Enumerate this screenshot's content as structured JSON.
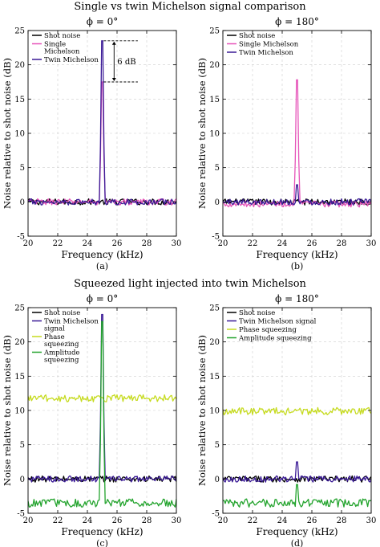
{
  "titles": {
    "top": "Single vs twin Michelson signal comparison",
    "bottom": "Squeezed light injected into twin Michelson"
  },
  "colors": {
    "shot": "#000000",
    "single": "#e653b9",
    "twin": "#3a1a96",
    "phase": "#c6db1f",
    "amplitude": "#22a32c"
  },
  "chart_data": [
    {
      "type": "line",
      "panel": "a",
      "title": "ϕ = 0°",
      "caption": "(a)",
      "xlabel": "Frequency (kHz)",
      "ylabel": "Noise relative to shot noise (dB)",
      "xlim": [
        20,
        30
      ],
      "ylim": [
        -5,
        25
      ],
      "xticks": [
        20,
        22,
        24,
        26,
        28,
        30
      ],
      "yticks": [
        -5,
        0,
        5,
        10,
        15,
        20,
        25
      ],
      "grid": true,
      "legend": "top-left",
      "annotation": {
        "text": "6 dB",
        "from": 23.5,
        "to": 17.5,
        "x": 25.8
      },
      "series": [
        {
          "name": "Shot noise",
          "color_key": "shot",
          "baseline": 0.0,
          "peak": 0.0
        },
        {
          "name": "Single Michelson",
          "legend_lines": [
            "Single",
            "Michelson"
          ],
          "color_key": "single",
          "baseline": 0.0,
          "peak": 17.5
        },
        {
          "name": "Twin Michelson",
          "color_key": "twin",
          "baseline": 0.0,
          "peak": 23.5
        }
      ]
    },
    {
      "type": "line",
      "panel": "b",
      "title": "ϕ = 180°",
      "caption": "(b)",
      "xlabel": "Frequency (kHz)",
      "ylabel": "Noise relative to shot noise (dB)",
      "xlim": [
        20,
        30
      ],
      "ylim": [
        -5,
        25
      ],
      "xticks": [
        20,
        22,
        24,
        26,
        28,
        30
      ],
      "yticks": [
        -5,
        0,
        5,
        10,
        15,
        20,
        25
      ],
      "grid": true,
      "legend": "top-left",
      "series": [
        {
          "name": "Shot noise",
          "color_key": "shot",
          "baseline": 0.0,
          "peak": 0.0
        },
        {
          "name": "Single Michelson",
          "color_key": "single",
          "baseline": -0.3,
          "peak": 17.8
        },
        {
          "name": "Twin Michelson",
          "color_key": "twin",
          "baseline": 0.0,
          "peak": 2.5
        }
      ]
    },
    {
      "type": "line",
      "panel": "c",
      "title": "ϕ = 0°",
      "caption": "(c)",
      "xlabel": "Frequency (kHz)",
      "ylabel": "Noise relative to shot noise (dB)",
      "xlim": [
        20,
        30
      ],
      "ylim": [
        -5,
        25
      ],
      "xticks": [
        20,
        22,
        24,
        26,
        28,
        30
      ],
      "yticks": [
        -5,
        0,
        5,
        10,
        15,
        20,
        25
      ],
      "grid": true,
      "legend": "top-left",
      "series": [
        {
          "name": "Shot noise",
          "color_key": "shot",
          "baseline": 0.0,
          "peak": 0.0
        },
        {
          "name": "Twin Michelson signal",
          "legend_lines": [
            "Twin Michelson",
            "signal"
          ],
          "color_key": "twin",
          "baseline": 0.0,
          "peak": 24.0
        },
        {
          "name": "Phase squeezing",
          "legend_lines": [
            "Phase",
            "squeezing"
          ],
          "color_key": "phase",
          "baseline": 11.8,
          "peak": 11.8
        },
        {
          "name": "Amplitude squeezing",
          "legend_lines": [
            "Amplitude",
            "squeezing"
          ],
          "color_key": "amplitude",
          "baseline": -3.5,
          "peak": 23.0
        }
      ]
    },
    {
      "type": "line",
      "panel": "d",
      "title": "ϕ = 180°",
      "caption": "(d)",
      "xlabel": "Frequency (kHz)",
      "ylabel": "Noise relative to shot noise (dB)",
      "xlim": [
        20,
        30
      ],
      "ylim": [
        -5,
        25
      ],
      "xticks": [
        20,
        22,
        24,
        26,
        28,
        30
      ],
      "yticks": [
        -5,
        0,
        5,
        10,
        15,
        20,
        25
      ],
      "grid": true,
      "legend": "top-left",
      "series": [
        {
          "name": "Shot noise",
          "color_key": "shot",
          "baseline": 0.0,
          "peak": 0.0
        },
        {
          "name": "Twin Michelson signal",
          "color_key": "twin",
          "baseline": 0.0,
          "peak": 2.5
        },
        {
          "name": "Phase squeezing",
          "color_key": "phase",
          "baseline": 9.9,
          "peak": 9.9
        },
        {
          "name": "Amplitude squeezing",
          "color_key": "amplitude",
          "baseline": -3.5,
          "peak": -0.8
        }
      ]
    }
  ]
}
